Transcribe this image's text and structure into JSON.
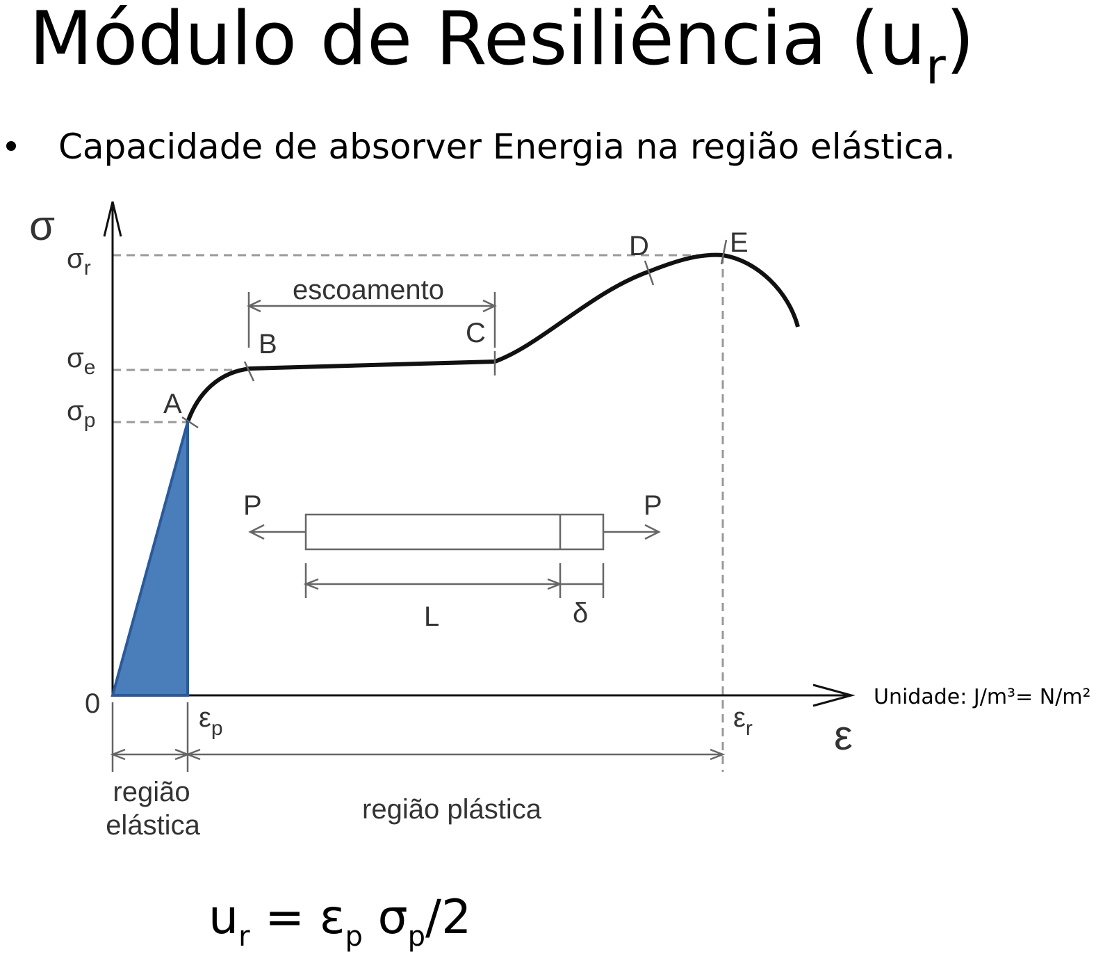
{
  "title": {
    "text": "Módulo de Resiliência (u",
    "subscript": "r",
    "close": ")"
  },
  "bullets": [
    "Capacidade de absorver Energia na região elástica."
  ],
  "diagram": {
    "y_axis": "σ",
    "x_axis": "ε",
    "origin": "0",
    "sigma_r": {
      "symbol": "σ",
      "sub": "r"
    },
    "sigma_e": {
      "symbol": "σ",
      "sub": "e"
    },
    "sigma_p": {
      "symbol": "σ",
      "sub": "p"
    },
    "eps_p": {
      "symbol": "ε",
      "sub": "p"
    },
    "eps_r": {
      "symbol": "ε",
      "sub": "r"
    },
    "points": [
      "A",
      "B",
      "C",
      "D",
      "E"
    ],
    "yield": "escoamento",
    "loads": [
      "P",
      "P"
    ],
    "length": "L",
    "elongation": "δ",
    "elastic_region": [
      "região",
      "elástica"
    ],
    "plastic_region": "região plástica"
  },
  "unit_note": "Unidade: J/m³= N/m²",
  "formula": [
    "u",
    "r",
    " = ε",
    "p",
    " σ",
    "p",
    "/2"
  ]
}
